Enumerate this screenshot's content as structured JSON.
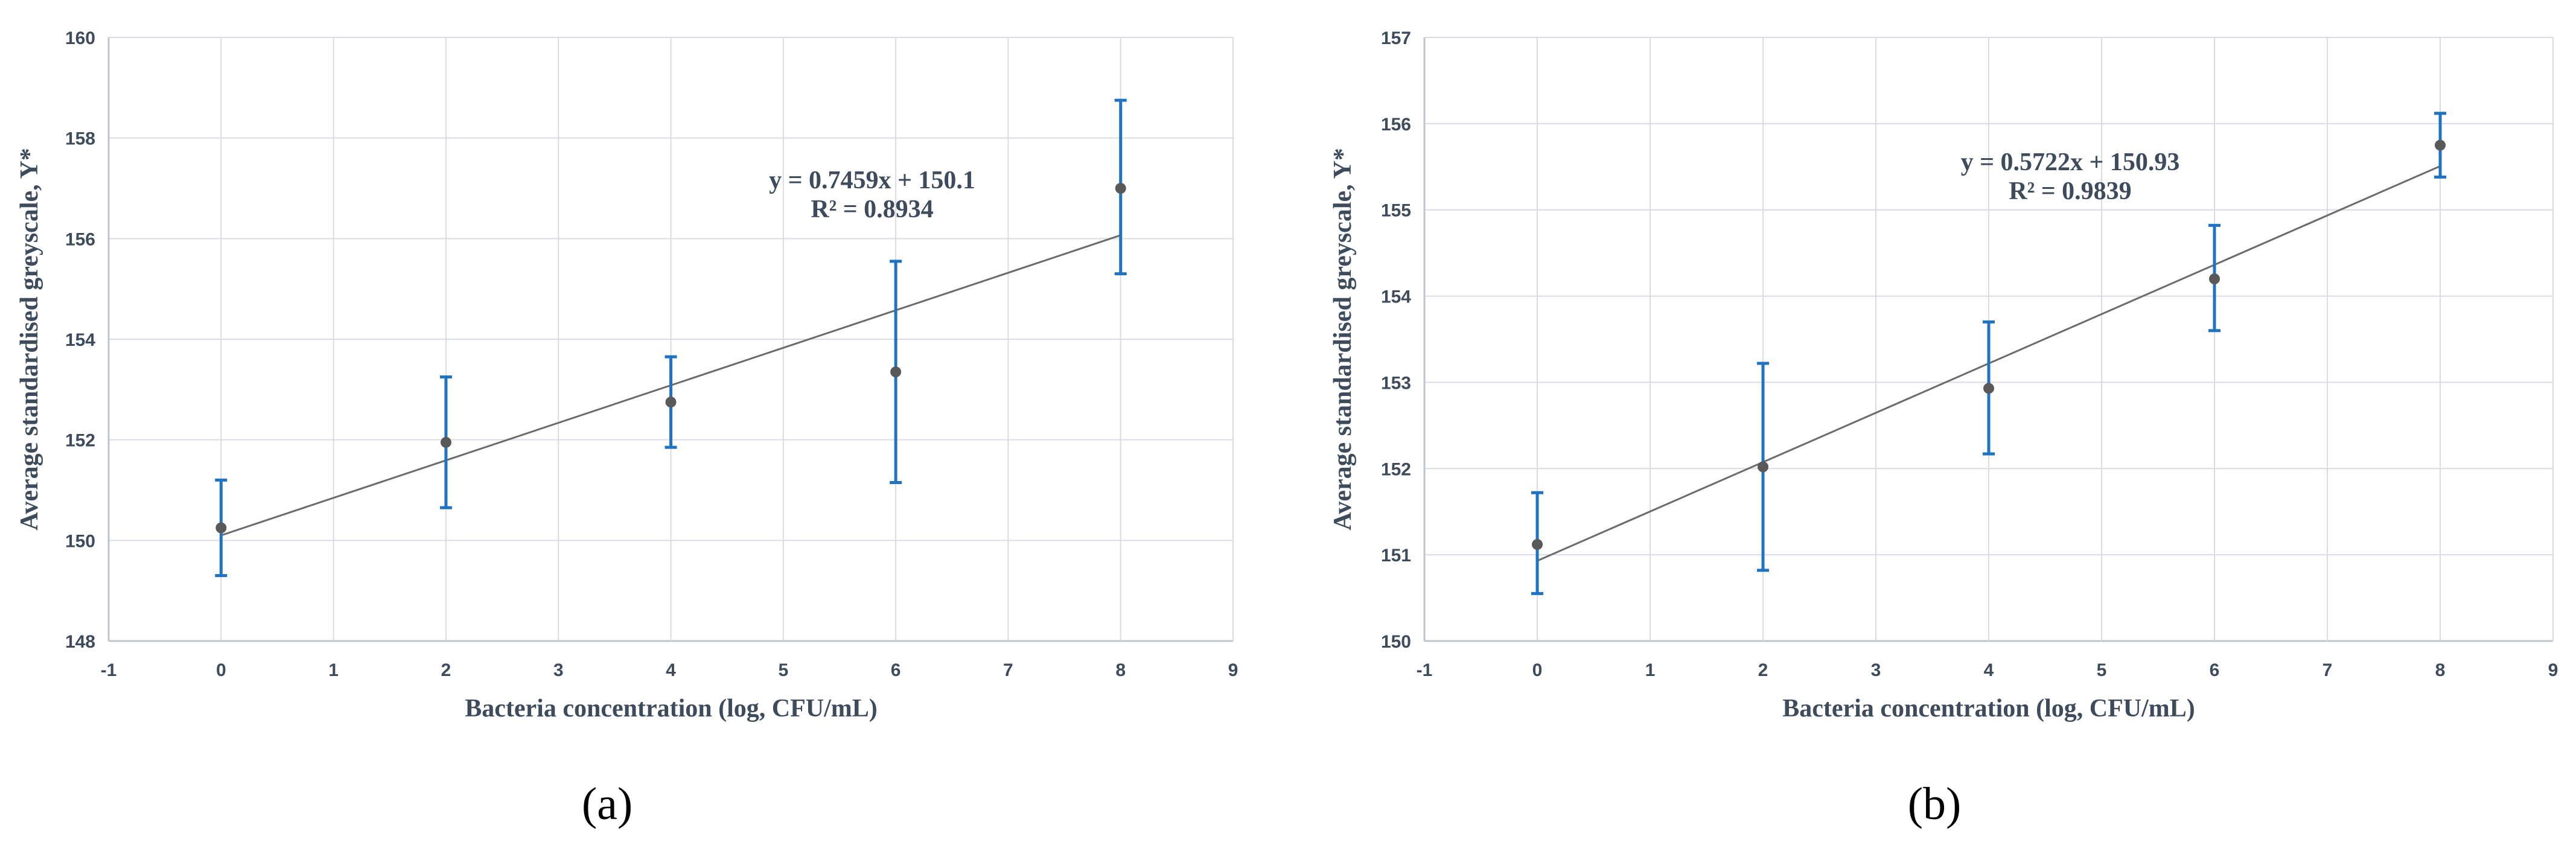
{
  "colors": {
    "grid": "#d9dde3",
    "axis": "#bfc5cc",
    "error_bar": "#1f73c2",
    "point": "#595959",
    "trendline": "#6b6b6b",
    "text": "#3d4b5c"
  },
  "chart_data": [
    {
      "type": "scatter",
      "panel_label": "(a)",
      "xlabel": "Bacteria concentration (log, CFU/mL)",
      "ylabel": "Average standardised greyscale, Y*",
      "xlim": [
        -1,
        9
      ],
      "ylim": [
        148,
        160
      ],
      "x_ticks": [
        -1,
        0,
        1,
        2,
        3,
        4,
        5,
        6,
        7,
        8,
        9
      ],
      "y_ticks": [
        148,
        150,
        152,
        154,
        156,
        158,
        160
      ],
      "grid": true,
      "points": [
        {
          "x": 0,
          "y": 150.25,
          "err_low": 149.3,
          "err_high": 151.2
        },
        {
          "x": 2,
          "y": 151.95,
          "err_low": 150.65,
          "err_high": 153.25
        },
        {
          "x": 4,
          "y": 152.75,
          "err_low": 151.85,
          "err_high": 153.65
        },
        {
          "x": 6,
          "y": 153.35,
          "err_low": 151.15,
          "err_high": 155.55
        },
        {
          "x": 8,
          "y": 157.0,
          "err_low": 155.3,
          "err_high": 158.75
        }
      ],
      "trendline": {
        "slope": 0.7459,
        "intercept": 150.1,
        "x_range": [
          0,
          8
        ]
      },
      "equation": "y = 0.7459x + 150.1",
      "r_squared": "R² = 0.8934"
    },
    {
      "type": "scatter",
      "panel_label": "(b)",
      "xlabel": "Bacteria concentration (log, CFU/mL)",
      "ylabel": "Average standardised greyscale, Y*",
      "xlim": [
        -1,
        9
      ],
      "ylim": [
        150,
        157
      ],
      "x_ticks": [
        -1,
        0,
        1,
        2,
        3,
        4,
        5,
        6,
        7,
        8,
        9
      ],
      "y_ticks": [
        150,
        151,
        152,
        153,
        154,
        155,
        156,
        157
      ],
      "grid": true,
      "points": [
        {
          "x": 0,
          "y": 151.12,
          "err_low": 150.55,
          "err_high": 151.72
        },
        {
          "x": 2,
          "y": 152.02,
          "err_low": 150.82,
          "err_high": 153.22
        },
        {
          "x": 4,
          "y": 152.93,
          "err_low": 152.17,
          "err_high": 153.7
        },
        {
          "x": 6,
          "y": 154.2,
          "err_low": 153.6,
          "err_high": 154.82
        },
        {
          "x": 8,
          "y": 155.75,
          "err_low": 155.38,
          "err_high": 156.12
        }
      ],
      "trendline": {
        "slope": 0.5722,
        "intercept": 150.93,
        "x_range": [
          0,
          8
        ]
      },
      "equation": "y = 0.5722x + 150.93",
      "r_squared": "R² = 0.9839"
    }
  ]
}
